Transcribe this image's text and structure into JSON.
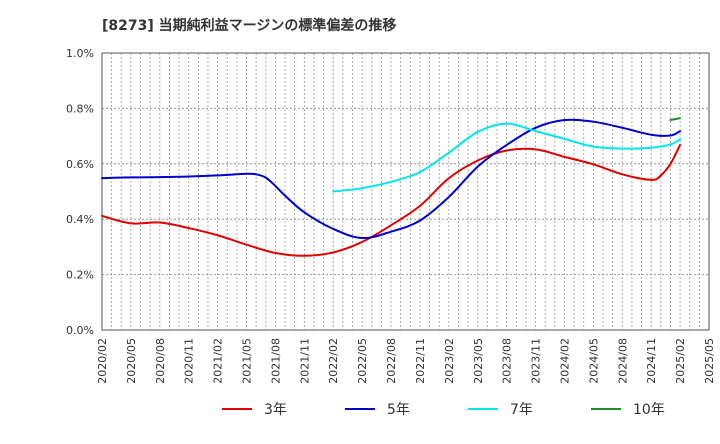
{
  "chart_data": {
    "type": "line",
    "title": "[8273]  当期純利益マージンの標準偏差の推移",
    "xlabel": "",
    "ylabel": "",
    "ylim": [
      0,
      1.0
    ],
    "yticks": [
      0.0,
      0.2,
      0.4,
      0.6,
      0.8,
      1.0
    ],
    "ytick_labels": [
      "0.0%",
      "0.2%",
      "0.4%",
      "0.6%",
      "0.8%",
      "1.0%"
    ],
    "xticks": [
      "2020/02",
      "2020/05",
      "2020/08",
      "2020/11",
      "2021/02",
      "2021/05",
      "2021/08",
      "2021/11",
      "2022/02",
      "2022/05",
      "2022/08",
      "2022/11",
      "2023/02",
      "2023/05",
      "2023/08",
      "2023/11",
      "2024/02",
      "2024/05",
      "2024/08",
      "2024/11",
      "2025/02",
      "2025/05"
    ],
    "grid": true,
    "legend_position": "bottom",
    "series": [
      {
        "name": "3年",
        "color": "#e00000",
        "points": [
          [
            "2020/02",
            0.412
          ],
          [
            "2020/05",
            0.385
          ],
          [
            "2020/08",
            0.388
          ],
          [
            "2020/11",
            0.368
          ],
          [
            "2021/02",
            0.342
          ],
          [
            "2021/05",
            0.308
          ],
          [
            "2021/08",
            0.278
          ],
          [
            "2021/11",
            0.268
          ],
          [
            "2022/02",
            0.28
          ],
          [
            "2022/05",
            0.318
          ],
          [
            "2022/08",
            0.378
          ],
          [
            "2022/11",
            0.448
          ],
          [
            "2023/02",
            0.548
          ],
          [
            "2023/05",
            0.612
          ],
          [
            "2023/08",
            0.648
          ],
          [
            "2023/11",
            0.652
          ],
          [
            "2024/02",
            0.625
          ],
          [
            "2024/05",
            0.598
          ],
          [
            "2024/08",
            0.562
          ],
          [
            "2024/11",
            0.542
          ],
          [
            "2024/12",
            0.558
          ],
          [
            "2025/01",
            0.6
          ],
          [
            "2025/02",
            0.668
          ]
        ]
      },
      {
        "name": "5年",
        "color": "#0000cc",
        "points": [
          [
            "2020/02",
            0.548
          ],
          [
            "2020/05",
            0.551
          ],
          [
            "2020/08",
            0.552
          ],
          [
            "2020/11",
            0.554
          ],
          [
            "2021/02",
            0.558
          ],
          [
            "2021/05",
            0.564
          ],
          [
            "2021/06",
            0.562
          ],
          [
            "2021/07",
            0.55
          ],
          [
            "2021/08",
            0.52
          ],
          [
            "2021/09",
            0.485
          ],
          [
            "2021/11",
            0.425
          ],
          [
            "2022/02",
            0.365
          ],
          [
            "2022/05",
            0.332
          ],
          [
            "2022/08",
            0.355
          ],
          [
            "2022/11",
            0.395
          ],
          [
            "2023/02",
            0.48
          ],
          [
            "2023/05",
            0.59
          ],
          [
            "2023/08",
            0.668
          ],
          [
            "2023/11",
            0.73
          ],
          [
            "2024/02",
            0.758
          ],
          [
            "2024/05",
            0.752
          ],
          [
            "2024/08",
            0.73
          ],
          [
            "2024/11",
            0.705
          ],
          [
            "2025/01",
            0.702
          ],
          [
            "2025/02",
            0.718
          ]
        ]
      },
      {
        "name": "7年",
        "color": "#00e5ee",
        "points": [
          [
            "2022/02",
            0.5
          ],
          [
            "2022/05",
            0.512
          ],
          [
            "2022/08",
            0.535
          ],
          [
            "2022/11",
            0.57
          ],
          [
            "2023/02",
            0.64
          ],
          [
            "2023/05",
            0.715
          ],
          [
            "2023/08",
            0.745
          ],
          [
            "2023/11",
            0.718
          ],
          [
            "2024/02",
            0.69
          ],
          [
            "2024/05",
            0.662
          ],
          [
            "2024/08",
            0.655
          ],
          [
            "2024/11",
            0.658
          ],
          [
            "2025/01",
            0.67
          ],
          [
            "2025/02",
            0.688
          ]
        ]
      },
      {
        "name": "10年",
        "color": "#228b22",
        "points": [
          [
            "2025/01",
            0.758
          ],
          [
            "2025/02",
            0.765
          ]
        ]
      }
    ]
  }
}
